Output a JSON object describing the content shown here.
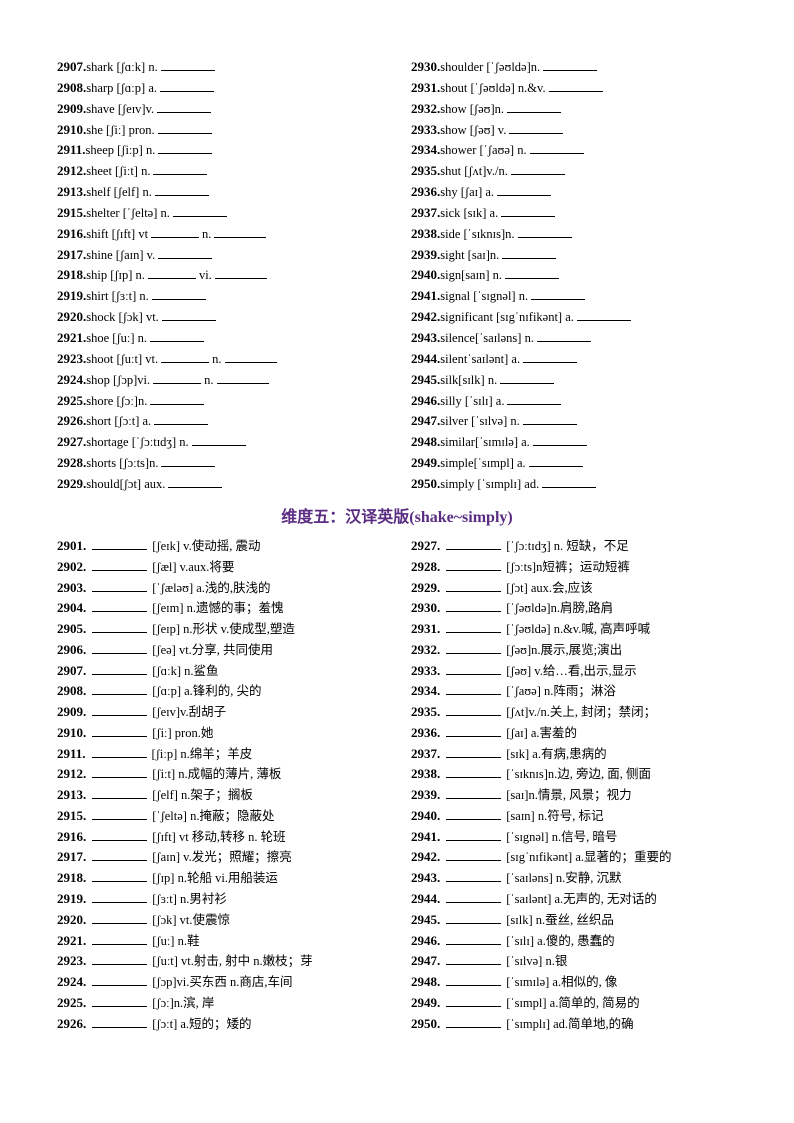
{
  "title": "维度五：汉译英版(shake~simply)",
  "title_color": "#5a2d82",
  "part1_left": [
    {
      "num": "2907.",
      "parts": [
        "shark [ʃɑːk] n.",
        "_"
      ]
    },
    {
      "num": "2908.",
      "parts": [
        "sharp [ʃɑːp] a.",
        "_"
      ]
    },
    {
      "num": "2909.",
      "parts": [
        "shave [ʃeɪv]v.",
        "_"
      ]
    },
    {
      "num": "2910.",
      "parts": [
        "she [ʃiː] pron.",
        "_"
      ]
    },
    {
      "num": "2911.",
      "parts": [
        "sheep [ʃiːp] n.",
        "_"
      ]
    },
    {
      "num": "2912.",
      "parts": [
        "sheet [ʃiːt] n.",
        "_"
      ]
    },
    {
      "num": "2913.",
      "parts": [
        "shelf [ʃelf] n.",
        "_"
      ]
    },
    {
      "num": "2915.",
      "parts": [
        "shelter [ˈʃeltə] n.",
        "_"
      ]
    },
    {
      "num": "2916.",
      "parts": [
        "shift [ʃɪft] vt",
        "_",
        "n.",
        "_"
      ]
    },
    {
      "num": "2917.",
      "parts": [
        "shine [ʃaɪn] v.",
        "_"
      ]
    },
    {
      "num": "2918.",
      "parts": [
        "ship [ʃɪp] n.",
        "_",
        "vi.",
        "_"
      ]
    },
    {
      "num": "2919.",
      "parts": [
        "shirt [ʃɜːt] n.",
        "_"
      ]
    },
    {
      "num": "2920.",
      "parts": [
        "shock [ʃɔk] vt.",
        "_"
      ]
    },
    {
      "num": "2921.",
      "parts": [
        "shoe [ʃuː] n.",
        "_"
      ]
    },
    {
      "num": "2923.",
      "parts": [
        "shoot [ʃuːt] vt.",
        "_",
        "n.",
        "_"
      ]
    },
    {
      "num": "2924.",
      "parts": [
        "shop [ʃɔp]vi.",
        "_",
        "n.",
        "_"
      ]
    },
    {
      "num": "2925.",
      "parts": [
        "shore [ʃɔː]n.",
        "_"
      ]
    },
    {
      "num": "2926.",
      "parts": [
        "short [ʃɔːt] a.",
        "_"
      ]
    },
    {
      "num": "2927.",
      "parts": [
        "shortage [ˈʃɔːtɪdʒ] n.",
        "_"
      ]
    },
    {
      "num": "2928.",
      "parts": [
        "shorts [ʃɔːts]n.",
        "_"
      ]
    },
    {
      "num": "2929.",
      "parts": [
        "should[ʃɔt] aux.",
        "_"
      ]
    }
  ],
  "part1_right": [
    {
      "num": "2930.",
      "parts": [
        "shoulder [ˈʃəʊldə]n.",
        "_"
      ]
    },
    {
      "num": "2931.",
      "parts": [
        "shout [ˈʃəʊldə] n.&v.",
        "_"
      ]
    },
    {
      "num": "2932.",
      "parts": [
        "show [ʃəʊ]n.",
        "_"
      ]
    },
    {
      "num": "2933.",
      "parts": [
        "show [ʃəʊ] v.",
        "_"
      ]
    },
    {
      "num": "2934.",
      "parts": [
        "shower [ˈʃaʊə] n.",
        "_"
      ]
    },
    {
      "num": "2935.",
      "parts": [
        "shut [ʃʌt]v./n.",
        "_"
      ]
    },
    {
      "num": "2936.",
      "parts": [
        "shy [ʃaɪ] a.",
        "_"
      ]
    },
    {
      "num": "2937.",
      "parts": [
        "sick [sɪk] a.",
        "_"
      ]
    },
    {
      "num": "2938.",
      "parts": [
        "side [ˈsɪknɪs]n.",
        "_"
      ]
    },
    {
      "num": "2939.",
      "parts": [
        "sight [saɪ]n.",
        "_"
      ]
    },
    {
      "num": "2940.",
      "parts": [
        "sign[saɪn] n.",
        "_"
      ]
    },
    {
      "num": "2941.",
      "parts": [
        "signal [ˈsɪgnəl] n.",
        "_"
      ]
    },
    {
      "num": "2942.",
      "parts": [
        "significant [sɪgˈnɪfikənt] a.",
        "_"
      ]
    },
    {
      "num": "2943.",
      "parts": [
        "silence[ˈsaɪləns] n.",
        "_"
      ]
    },
    {
      "num": "2944.",
      "parts": [
        "silentˈsaɪlənt] a.",
        "_"
      ]
    },
    {
      "num": "2945.",
      "parts": [
        "silk[sɪlk] n.",
        "_"
      ]
    },
    {
      "num": "2946.",
      "parts": [
        "silly [ˈsɪlɪ] a.",
        "_"
      ]
    },
    {
      "num": "2947.",
      "parts": [
        "silver [ˈsɪlvə] n.",
        "_"
      ]
    },
    {
      "num": "2948.",
      "parts": [
        "similar[ˈsɪmɪlə] a.",
        "_"
      ]
    },
    {
      "num": "2949.",
      "parts": [
        "simple[ˈsɪmpl] a.",
        "_"
      ]
    },
    {
      "num": "2950.",
      "parts": [
        "simply [ˈsɪmplɪ] ad.",
        "_"
      ]
    }
  ],
  "part2_left": [
    {
      "num": "2901.",
      "text": "[ʃeɪk] v.使动摇, 震动"
    },
    {
      "num": "2902.",
      "text": "[ʃæl] v.aux.将要"
    },
    {
      "num": "2903.",
      "text": "[ˈʃæləʊ] a.浅的,肤浅的"
    },
    {
      "num": "2904.",
      "text": "[ʃeɪm] n.遗憾的事；羞愧"
    },
    {
      "num": "2905.",
      "text": "[ʃeɪp] n.形状  v.使成型,塑造"
    },
    {
      "num": "2906.",
      "text": "[ʃeə] vt.分享, 共同使用"
    },
    {
      "num": "2907.",
      "text": "[ʃɑːk] n.鲨鱼"
    },
    {
      "num": "2908.",
      "text": "[ʃɑːp] a.锋利的, 尖的"
    },
    {
      "num": "2909.",
      "text": "[ʃeɪv]v.刮胡子"
    },
    {
      "num": "2910.",
      "text": "[ʃiː] pron.她"
    },
    {
      "num": "2911.",
      "text": "[ʃiːp] n.绵羊；羊皮"
    },
    {
      "num": "2912.",
      "text": "[ʃiːt] n.成幅的薄片, 薄板"
    },
    {
      "num": "2913.",
      "text": "[ʃelf] n.架子；搁板"
    },
    {
      "num": "2915.",
      "text": "[ˈʃeltə] n.掩蔽；隐蔽处"
    },
    {
      "num": "2916.",
      "text": "[ʃɪft] vt 移动,转移 n. 轮班"
    },
    {
      "num": "2917.",
      "text": "[ʃaɪn] v.发光；照耀；擦亮"
    },
    {
      "num": "2918.",
      "text": "[ʃɪp] n.轮船  vi.用船装运"
    },
    {
      "num": "2919.",
      "text": "[ʃɜːt] n.男衬衫"
    },
    {
      "num": "2920.",
      "text": "[ʃɔk] vt.使震惊"
    },
    {
      "num": "2921.",
      "text": "[ʃuː] n.鞋"
    },
    {
      "num": "2923.",
      "text": "[ʃuːt] vt.射击, 射中 n.嫩枝；芽"
    },
    {
      "num": "2924.",
      "text": "[ʃɔp]vi.买东西  n.商店,车间"
    },
    {
      "num": "2925.",
      "text": "[ʃɔː]n.滨, 岸"
    },
    {
      "num": "2926.",
      "text": "[ʃɔːt] a.短的；矮的"
    }
  ],
  "part2_right": [
    {
      "num": "2927.",
      "text": "[ˈʃɔːtɪdʒ] n. 短缺，不足"
    },
    {
      "num": "2928.",
      "text": "[ʃɔːts]n短裤；运动短裤"
    },
    {
      "num": "2929.",
      "text": "[ʃɔt] aux.会,应该"
    },
    {
      "num": "2930.",
      "text": "[ˈʃəʊldə]n.肩膀,路肩"
    },
    {
      "num": "2931.",
      "text": "[ˈʃəʊldə] n.&v.喊, 高声呼喊"
    },
    {
      "num": "2932.",
      "text": "[ʃəʊ]n.展示,展览;演出"
    },
    {
      "num": "2933.",
      "text": "[ʃəʊ] v.给…看,出示,显示"
    },
    {
      "num": "2934.",
      "text": "[ˈʃaʊə] n.阵雨；淋浴"
    },
    {
      "num": "2935.",
      "text": "[ʃʌt]v./n.关上, 封闭；禁闭；"
    },
    {
      "num": "2936.",
      "text": "[ʃaɪ] a.害羞的"
    },
    {
      "num": "2937.",
      "text": "[sɪk] a.有病,患病的"
    },
    {
      "num": "2938.",
      "text": "[ˈsɪknɪs]n.边, 旁边, 面, 侧面"
    },
    {
      "num": "2939.",
      "text": "[saɪ]n.情景, 风景；视力"
    },
    {
      "num": "2940.",
      "text": "[saɪn] n.符号, 标记"
    },
    {
      "num": "2941.",
      "text": "[ˈsɪgnəl] n.信号, 暗号"
    },
    {
      "num": "2942.",
      "text": "[sɪgˈnɪfikənt] a.显著的；重要的"
    },
    {
      "num": "2943.",
      "text": "[ˈsaɪləns] n.安静, 沉默"
    },
    {
      "num": "2944.",
      "text": "[ˈsaɪlənt] a.无声的, 无对话的"
    },
    {
      "num": "2945.",
      "text": "[sɪlk] n.蚕丝, 丝织品"
    },
    {
      "num": "2946.",
      "text": "[ˈsɪlɪ] a.傻的, 愚蠢的"
    },
    {
      "num": "2947.",
      "text": "[ˈsɪlvə] n.银"
    },
    {
      "num": "2948.",
      "text": "[ˈsɪmɪlə] a.相似的, 像"
    },
    {
      "num": "2949.",
      "text": "[ˈsɪmpl] a.简单的, 简易的"
    },
    {
      "num": "2950.",
      "text": "[ˈsɪmplɪ] ad.简单地,的确"
    }
  ]
}
